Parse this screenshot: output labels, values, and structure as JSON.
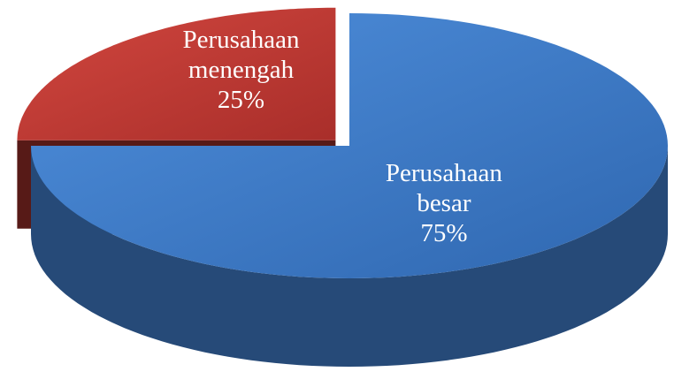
{
  "chart_data": {
    "type": "pie",
    "categories": [
      "Perusahaan besar",
      "Perusahaan menengah"
    ],
    "values": [
      75,
      25
    ],
    "value_labels": [
      "75%",
      "25%"
    ],
    "colors": [
      "#3f7bc8",
      "#c23a34"
    ]
  }
}
